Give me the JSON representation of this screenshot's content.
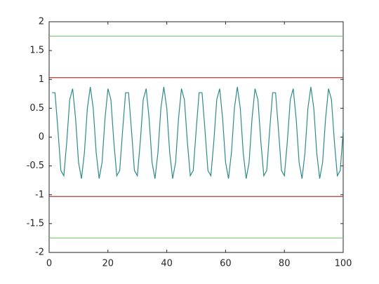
{
  "chart_data": {
    "type": "line",
    "xlim": [
      0,
      100
    ],
    "xticks": [
      0,
      20,
      40,
      60,
      80,
      100
    ],
    "ylim": [
      -2,
      2
    ],
    "yticks": [
      -2,
      -1.5,
      -1,
      -0.5,
      0,
      0.5,
      1,
      1.5,
      2
    ],
    "series": [
      {
        "color": "#77c777",
        "x": [
          0,
          100
        ],
        "values": [
          1.75,
          1.75
        ]
      },
      {
        "color": "#b03a3a",
        "x": [
          0,
          100
        ],
        "values": [
          1.03,
          1.03
        ]
      },
      {
        "color": "#b03a3a",
        "x": [
          0,
          100
        ],
        "values": [
          -1.03,
          -1.03
        ]
      },
      {
        "color": "#77c777",
        "x": [
          0,
          100
        ],
        "values": [
          -1.75,
          -1.75
        ]
      },
      {
        "color": "#2e8b8b",
        "x": [
          1,
          2,
          3,
          4,
          5,
          6,
          7,
          8,
          9,
          10,
          11,
          12,
          13,
          14,
          15,
          16,
          17,
          18,
          19,
          20,
          21,
          22,
          23,
          24,
          25,
          26,
          27,
          28,
          29,
          30,
          31,
          32,
          33,
          34,
          35,
          36,
          37,
          38,
          39,
          40,
          41,
          42,
          43,
          44,
          45,
          46,
          47,
          48,
          49,
          50,
          51,
          52,
          53,
          54,
          55,
          56,
          57,
          58,
          59,
          60,
          61,
          62,
          63,
          64,
          65,
          66,
          67,
          68,
          69,
          70,
          71,
          72,
          73,
          74,
          75,
          76,
          77,
          78,
          79,
          80,
          81,
          82,
          83,
          84,
          85,
          86,
          87,
          88,
          89,
          90,
          91,
          92,
          93,
          94,
          95,
          96,
          97,
          98,
          99,
          100
        ],
        "values": [
          0.77,
          0.77,
          0.12,
          -0.58,
          -0.67,
          -0.08,
          0.65,
          0.84,
          0.32,
          -0.44,
          -0.72,
          -0.27,
          0.5,
          0.87,
          0.5,
          -0.27,
          -0.72,
          -0.44,
          0.32,
          0.84,
          0.65,
          -0.08,
          -0.67,
          -0.58,
          0.12,
          0.77,
          0.77,
          0.12,
          -0.58,
          -0.67,
          -0.08,
          0.65,
          0.84,
          0.32,
          -0.44,
          -0.72,
          -0.27,
          0.5,
          0.87,
          0.5,
          -0.27,
          -0.72,
          -0.44,
          0.32,
          0.84,
          0.65,
          -0.08,
          -0.67,
          -0.58,
          0.12,
          0.77,
          0.77,
          0.12,
          -0.58,
          -0.67,
          -0.08,
          0.65,
          0.84,
          0.32,
          -0.44,
          -0.72,
          -0.27,
          0.5,
          0.87,
          0.5,
          -0.27,
          -0.72,
          -0.44,
          0.32,
          0.84,
          0.65,
          -0.08,
          -0.67,
          -0.58,
          0.12,
          0.77,
          0.77,
          0.12,
          -0.58,
          -0.67,
          -0.08,
          0.65,
          0.84,
          0.32,
          -0.44,
          -0.72,
          -0.27,
          0.5,
          0.87,
          0.5,
          -0.27,
          -0.72,
          -0.44,
          0.32,
          0.84,
          0.65,
          -0.08,
          -0.67,
          -0.58,
          0.12
        ]
      }
    ]
  }
}
